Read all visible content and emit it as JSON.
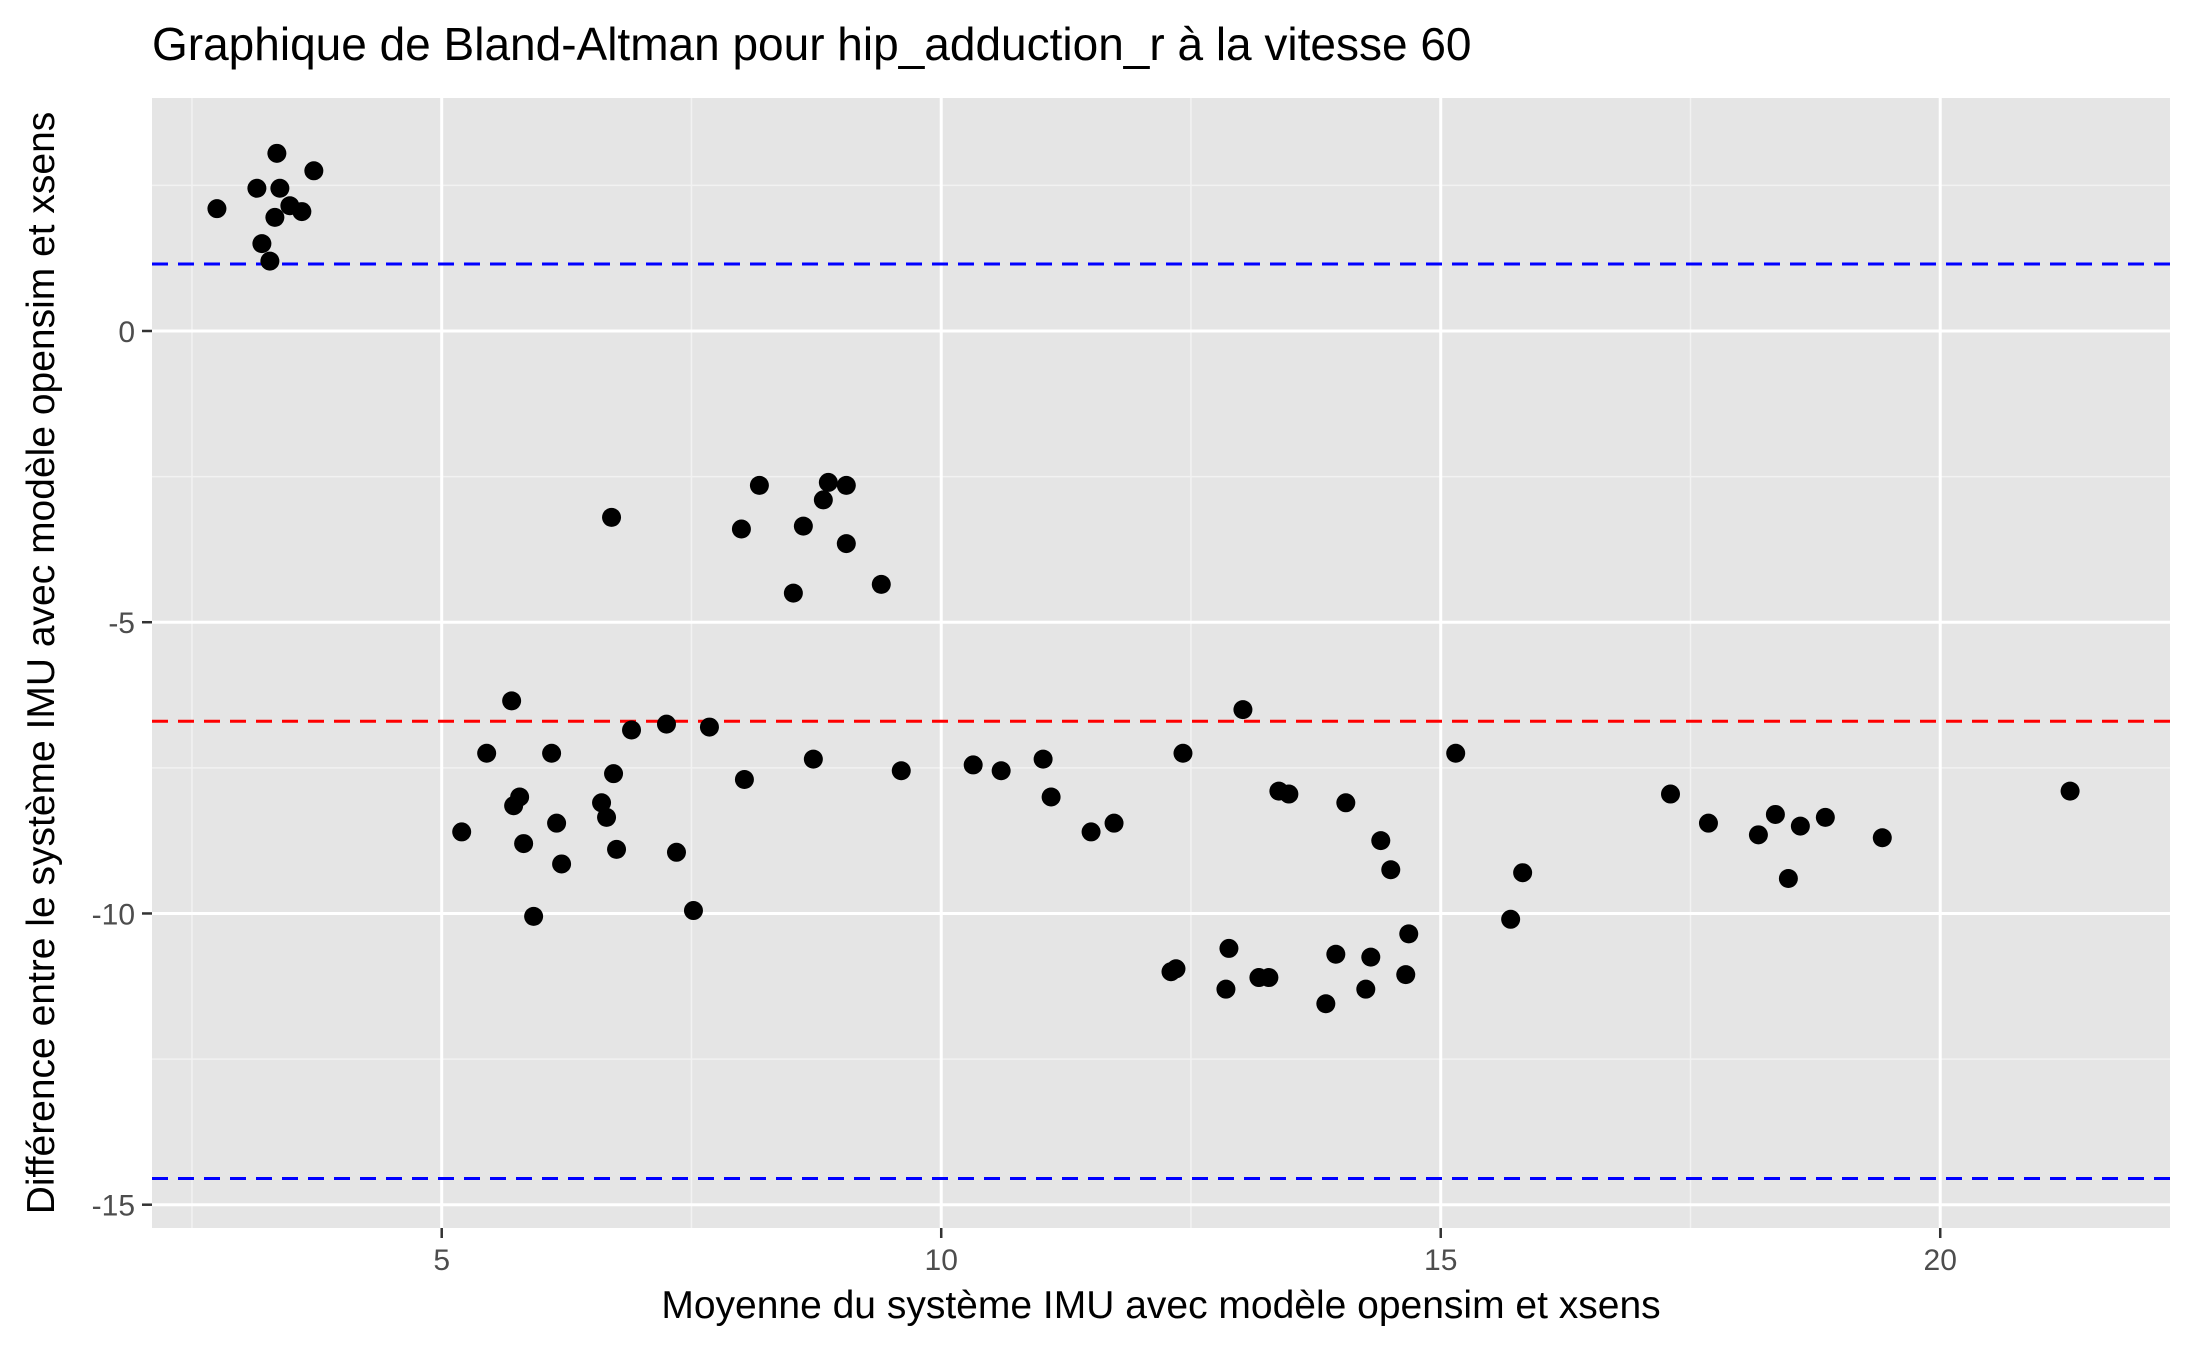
{
  "chart_data": {
    "type": "scatter",
    "title": "Graphique de Bland-Altman pour hip_adduction_r à la vitesse 60",
    "xlabel": "Moyenne du système IMU avec modèle opensim et xsens",
    "ylabel": "Différence entre le système IMU avec modèle opensim et xsens",
    "xlim": [
      2.1,
      22.3
    ],
    "ylim": [
      -15.4,
      4.0
    ],
    "x_ticks": [
      5,
      10,
      15,
      20
    ],
    "x_tick_labels": [
      "5",
      "10",
      "15",
      "20"
    ],
    "y_ticks": [
      -15,
      -10,
      -5,
      0
    ],
    "y_tick_labels": [
      "-15",
      "-10",
      "-5",
      "0"
    ],
    "grid": true,
    "reference_lines": [
      {
        "role": "upper_limit",
        "y": 1.15,
        "color": "#0000ff",
        "style": "dashed"
      },
      {
        "role": "mean",
        "y": -6.7,
        "color": "#ff0000",
        "style": "dashed"
      },
      {
        "role": "lower_limit",
        "y": -14.55,
        "color": "#0000ff",
        "style": "dashed"
      }
    ],
    "series": [
      {
        "points": [
          [
            2.75,
            2.1
          ],
          [
            3.15,
            2.45
          ],
          [
            3.2,
            1.5
          ],
          [
            3.28,
            1.2
          ],
          [
            3.33,
            1.95
          ],
          [
            3.35,
            3.05
          ],
          [
            3.38,
            2.45
          ],
          [
            3.48,
            2.15
          ],
          [
            3.6,
            2.05
          ],
          [
            3.72,
            2.75
          ],
          [
            5.2,
            -8.6
          ],
          [
            5.45,
            -7.25
          ],
          [
            5.7,
            -6.35
          ],
          [
            5.72,
            -8.15
          ],
          [
            5.78,
            -8.0
          ],
          [
            5.82,
            -8.8
          ],
          [
            5.92,
            -10.05
          ],
          [
            6.1,
            -7.25
          ],
          [
            6.15,
            -8.45
          ],
          [
            6.2,
            -9.15
          ],
          [
            6.6,
            -8.1
          ],
          [
            6.65,
            -8.35
          ],
          [
            6.7,
            -3.2
          ],
          [
            6.72,
            -7.6
          ],
          [
            6.75,
            -8.9
          ],
          [
            6.9,
            -6.85
          ],
          [
            7.25,
            -6.75
          ],
          [
            7.35,
            -8.95
          ],
          [
            7.52,
            -9.95
          ],
          [
            7.68,
            -6.8
          ],
          [
            8.0,
            -3.4
          ],
          [
            8.03,
            -7.7
          ],
          [
            8.18,
            -2.65
          ],
          [
            8.52,
            -4.5
          ],
          [
            8.62,
            -3.35
          ],
          [
            8.72,
            -7.35
          ],
          [
            8.82,
            -2.9
          ],
          [
            8.87,
            -2.6
          ],
          [
            9.05,
            -3.65
          ],
          [
            9.05,
            -2.65
          ],
          [
            9.4,
            -4.35
          ],
          [
            9.6,
            -7.55
          ],
          [
            10.32,
            -7.45
          ],
          [
            10.6,
            -7.55
          ],
          [
            11.02,
            -7.35
          ],
          [
            11.1,
            -8.0
          ],
          [
            11.5,
            -8.6
          ],
          [
            11.73,
            -8.45
          ],
          [
            12.3,
            -11.0
          ],
          [
            12.35,
            -10.95
          ],
          [
            12.42,
            -7.25
          ],
          [
            12.85,
            -11.3
          ],
          [
            12.88,
            -10.6
          ],
          [
            13.02,
            -6.5
          ],
          [
            13.18,
            -11.1
          ],
          [
            13.28,
            -11.1
          ],
          [
            13.38,
            -7.9
          ],
          [
            13.48,
            -7.95
          ],
          [
            13.85,
            -11.55
          ],
          [
            13.95,
            -10.7
          ],
          [
            14.05,
            -8.1
          ],
          [
            14.25,
            -11.3
          ],
          [
            14.3,
            -10.75
          ],
          [
            14.4,
            -8.75
          ],
          [
            14.5,
            -9.25
          ],
          [
            14.65,
            -11.05
          ],
          [
            14.68,
            -10.35
          ],
          [
            15.15,
            -7.25
          ],
          [
            15.7,
            -10.1
          ],
          [
            15.82,
            -9.3
          ],
          [
            17.3,
            -7.95
          ],
          [
            17.68,
            -8.45
          ],
          [
            18.18,
            -8.65
          ],
          [
            18.35,
            -8.3
          ],
          [
            18.48,
            -9.4
          ],
          [
            18.6,
            -8.5
          ],
          [
            18.85,
            -8.35
          ],
          [
            19.42,
            -8.7
          ],
          [
            21.3,
            -7.9
          ]
        ]
      }
    ]
  }
}
